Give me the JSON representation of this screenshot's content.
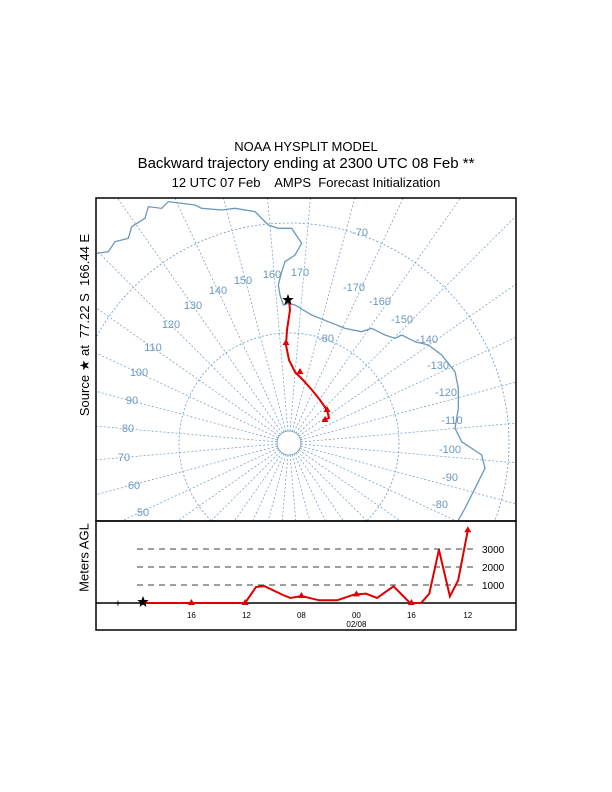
{
  "header": {
    "title": "NOAA HYSPLIT MODEL",
    "subtitle": "Backward trajectory ending at 2300 UTC 08 Feb **",
    "init": "12 UTC 07 Feb    AMPS  Forecast Initialization"
  },
  "source_label": "Source ★ at  77.22 S  166.44 E",
  "colors": {
    "grid": "#6a98c0",
    "trajectory": "#e00000",
    "frame": "#000000"
  },
  "chart_data": [
    {
      "type": "map",
      "projection": "polar stereographic (south)",
      "lat_labels": [
        "-70",
        "-80"
      ],
      "lon_labels": [
        "170",
        "160",
        "150",
        "140",
        "130",
        "120",
        "110",
        "100",
        "90",
        "80",
        "70",
        "60",
        "50",
        "-170",
        "-160",
        "-150",
        "-140",
        "-130",
        "-120",
        "-110",
        "-100",
        "-90",
        "-80"
      ],
      "source": {
        "lat": -77.22,
        "lon": 166.44
      }
    },
    {
      "type": "line",
      "ylabel": "Meters AGL",
      "xlabel_date": "02/08",
      "x_ticks": [
        {
          "h": 3.5,
          "label": "16"
        },
        {
          "h": 7.5,
          "label": "12"
        },
        {
          "h": 11.5,
          "label": "08"
        },
        {
          "h": 15.5,
          "label": "00"
        },
        {
          "h": 19.5,
          "label": "16"
        },
        {
          "h": 23.6,
          "label": "12"
        }
      ],
      "y_levels": [
        {
          "v": 1000,
          "label": "1000"
        },
        {
          "v": 2000,
          "label": "2000"
        },
        {
          "v": 3000,
          "label": "3000"
        }
      ],
      "series": [
        {
          "name": "trajectory height",
          "hours": [
            0,
            3.5,
            7.4,
            8.2,
            8.8,
            10.2,
            10.7,
            11.5,
            12.8,
            14.1,
            15.3,
            15.5,
            16.2,
            17,
            18.2,
            19.4,
            19.5,
            20.2,
            20.8,
            21.5,
            22.3,
            22.9,
            23.6
          ],
          "values": [
            0,
            0,
            0,
            890,
            940,
            430,
            280,
            390,
            150,
            150,
            460,
            480,
            520,
            280,
            930,
            0,
            0,
            0,
            520,
            2960,
            370,
            1260,
            4040
          ]
        }
      ]
    }
  ]
}
